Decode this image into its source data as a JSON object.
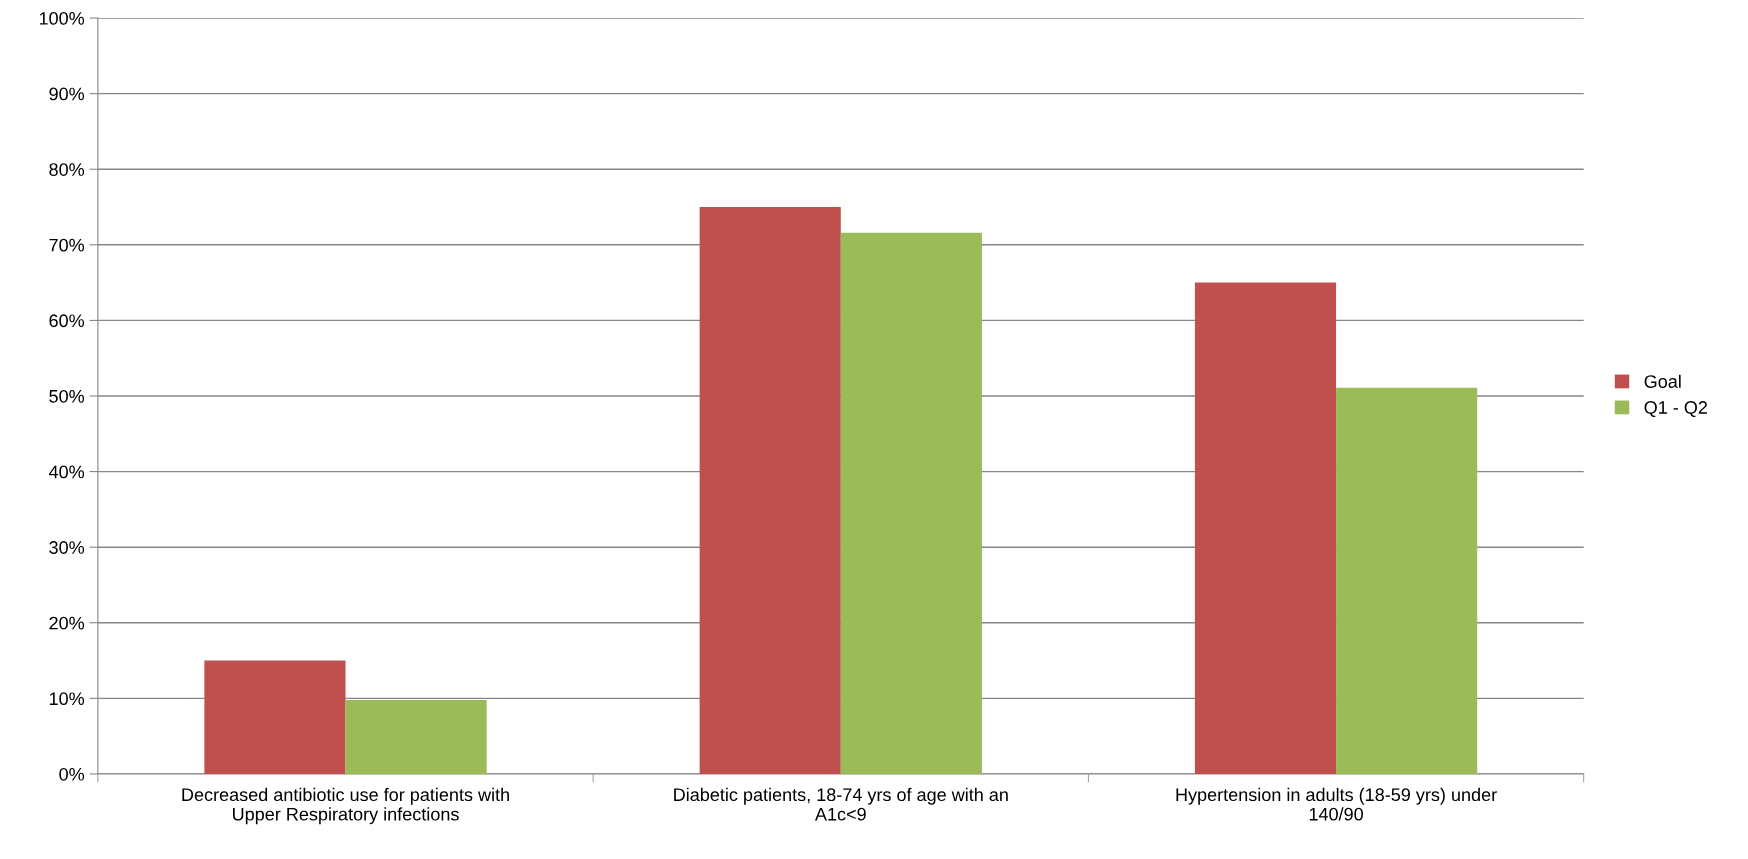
{
  "chart_data": {
    "type": "bar",
    "categories": [
      "Decreased antibiotic use for patients with\nUpper Respiratory infections",
      "Diabetic patients, 18-74 yrs of age with an\nA1c<9",
      "Hypertension in adults (18-59 yrs) under\n140/90"
    ],
    "series": [
      {
        "name": "Goal",
        "color": "#c0504d",
        "values": [
          15,
          75,
          65
        ]
      },
      {
        "name": "Q1 - Q2",
        "color": "#9bbb59",
        "values": [
          9.8,
          71.6,
          51.1
        ]
      }
    ],
    "ylim": [
      0,
      100
    ],
    "yticks": [
      {
        "value": 0,
        "label": "0%"
      },
      {
        "value": 10,
        "label": "10%"
      },
      {
        "value": 20,
        "label": "20%"
      },
      {
        "value": 30,
        "label": "30%"
      },
      {
        "value": 40,
        "label": "40%"
      },
      {
        "value": 50,
        "label": "50%"
      },
      {
        "value": 60,
        "label": "60%"
      },
      {
        "value": 70,
        "label": "70%"
      },
      {
        "value": 80,
        "label": "80%"
      },
      {
        "value": 90,
        "label": "90%"
      },
      {
        "value": 100,
        "label": "100%"
      }
    ],
    "grid": "y",
    "legend": "right"
  }
}
